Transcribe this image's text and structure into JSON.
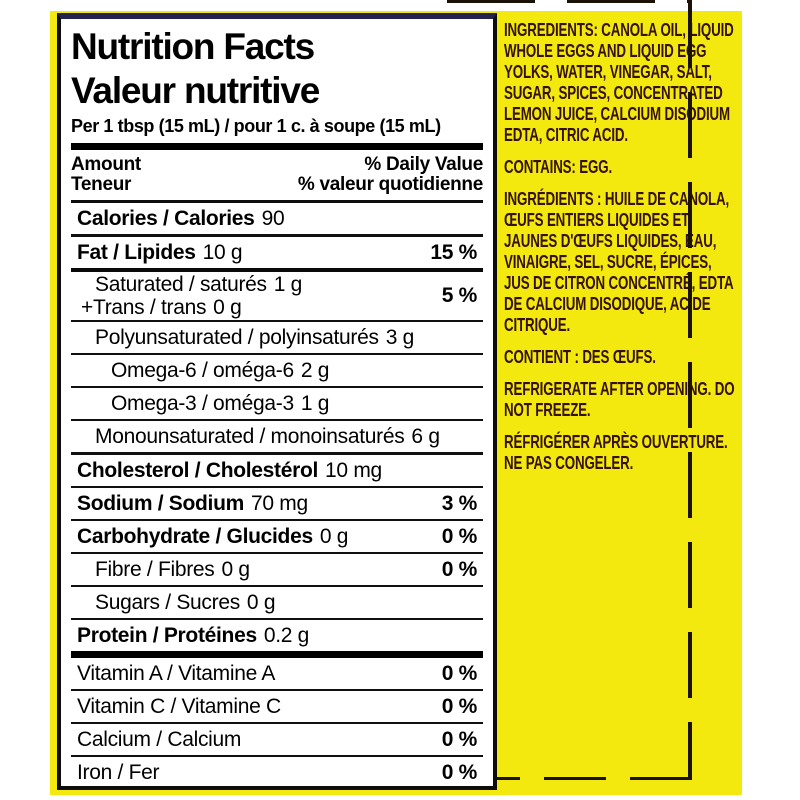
{
  "colors": {
    "page_background": "#FFFFFF",
    "label_yellow": "#F3E90F",
    "ingredients_text": "#351107",
    "panel_border_black": "#0D0D0D",
    "panel_border_navy": "#23234E",
    "nutrition_text": "#000000"
  },
  "nutrition": {
    "title_en": "Nutrition Facts",
    "title_fr": "Valeur nutritive",
    "serving_line": "Per 1 tbsp (15 mL) / pour 1 c. à soupe (15 mL)",
    "column_header": {
      "amount_en": "Amount",
      "amount_fr": "Teneur",
      "daily_value_en": "% Daily Value",
      "daily_value_fr": "% valeur quotidienne"
    },
    "rows": [
      {
        "name": "calories",
        "label": "Calories / Calories",
        "amount": "90",
        "percent": "",
        "bold": true,
        "indent": 0,
        "rule": "med"
      },
      {
        "name": "fat",
        "label": "Fat / Lipides",
        "amount": "10 g",
        "percent": "15 %",
        "bold": true,
        "indent": 0,
        "rule": "heavy"
      },
      {
        "name": "saturated-trans",
        "two": true,
        "line1_label": "Saturated / saturés",
        "line1_amount": "1 g",
        "line2_label": "+Trans / trans",
        "line2_amount": "0 g",
        "percent": "5 %",
        "bold": false,
        "indent": 1,
        "rule": "thin"
      },
      {
        "name": "polyunsaturated",
        "label": "Polyunsaturated / polyinsaturés",
        "amount": "3 g",
        "percent": "",
        "bold": false,
        "indent": 1,
        "rule": "thin"
      },
      {
        "name": "omega-6",
        "label": "Omega-6 / oméga-6",
        "amount": "2 g",
        "percent": "",
        "bold": false,
        "indent": 2,
        "rule": "thin"
      },
      {
        "name": "omega-3",
        "label": "Omega-3 / oméga-3",
        "amount": "1 g",
        "percent": "",
        "bold": false,
        "indent": 2,
        "rule": "thin"
      },
      {
        "name": "monounsaturated",
        "label": "Monounsaturated / monoinsaturés",
        "amount": "6 g",
        "percent": "",
        "bold": false,
        "indent": 1,
        "rule": "med"
      },
      {
        "name": "cholesterol",
        "label": "Cholesterol / Cholestérol",
        "amount": "10 mg",
        "percent": "",
        "bold": true,
        "indent": 0,
        "rule": "thin"
      },
      {
        "name": "sodium",
        "label": "Sodium / Sodium",
        "amount": "70 mg",
        "percent": "3 %",
        "bold": true,
        "indent": 0,
        "rule": "thin"
      },
      {
        "name": "carbohydrate",
        "label": "Carbohydrate / Glucides",
        "amount": "0 g",
        "percent": "0 %",
        "bold": true,
        "indent": 0,
        "rule": "thin"
      },
      {
        "name": "fibre",
        "label": "Fibre / Fibres",
        "amount": "0 g",
        "percent": "0 %",
        "bold": false,
        "indent": 1,
        "rule": "thin"
      },
      {
        "name": "sugars",
        "label": "Sugars / Sucres",
        "amount": "0 g",
        "percent": "",
        "bold": false,
        "indent": 1,
        "rule": "thin"
      },
      {
        "name": "protein",
        "label": "Protein / Protéines",
        "amount": "0.2 g",
        "percent": "",
        "bold": true,
        "indent": 0,
        "rule": "bar"
      },
      {
        "name": "vitamin-a",
        "label": "Vitamin A / Vitamine A",
        "amount": "",
        "percent": "0 %",
        "bold": false,
        "indent": 0,
        "rule": "thin"
      },
      {
        "name": "vitamin-c",
        "label": "Vitamin C / Vitamine C",
        "amount": "",
        "percent": "0 %",
        "bold": false,
        "indent": 0,
        "rule": "thin"
      },
      {
        "name": "calcium",
        "label": "Calcium / Calcium",
        "amount": "",
        "percent": "0 %",
        "bold": false,
        "indent": 0,
        "rule": "thin"
      },
      {
        "name": "iron",
        "label": "Iron / Fer",
        "amount": "",
        "percent": "0 %",
        "bold": false,
        "indent": 0,
        "rule": "none"
      }
    ]
  },
  "ingredients_panel": {
    "paragraphs": [
      {
        "name": "ingredients-en",
        "text": "INGREDIENTS: CANOLA OIL, LIQUID WHOLE EGGS AND LIQUID EGG YOLKS, WATER, VINEGAR, SALT, SUGAR, SPICES, CONCENTRATED LEMON JUICE, CALCIUM DISODIUM EDTA, CITRIC ACID."
      },
      {
        "name": "contains-en",
        "text": "CONTAINS: EGG."
      },
      {
        "name": "ingredients-fr",
        "text": "INGRÉDIENTS : HUILE DE CANOLA, ŒUFS ENTIERS LIQUIDES ET JAUNES D'ŒUFS LIQUIDES, EAU, VINAIGRE, SEL, SUCRE, ÉPICES, JUS DE CITRON CONCENTRÉ, EDTA DE CALCIUM DISODIQUE, ACIDE CITRIQUE."
      },
      {
        "name": "contains-fr",
        "text": "CONTIENT : DES ŒUFS."
      },
      {
        "name": "storage-en",
        "text": "REFRIGERATE AFTER OPENING. DO NOT FREEZE."
      },
      {
        "name": "storage-fr",
        "text": "RÉFRIGÉRER APRÈS OUVERTURE. NE PAS CONGELER."
      }
    ]
  }
}
